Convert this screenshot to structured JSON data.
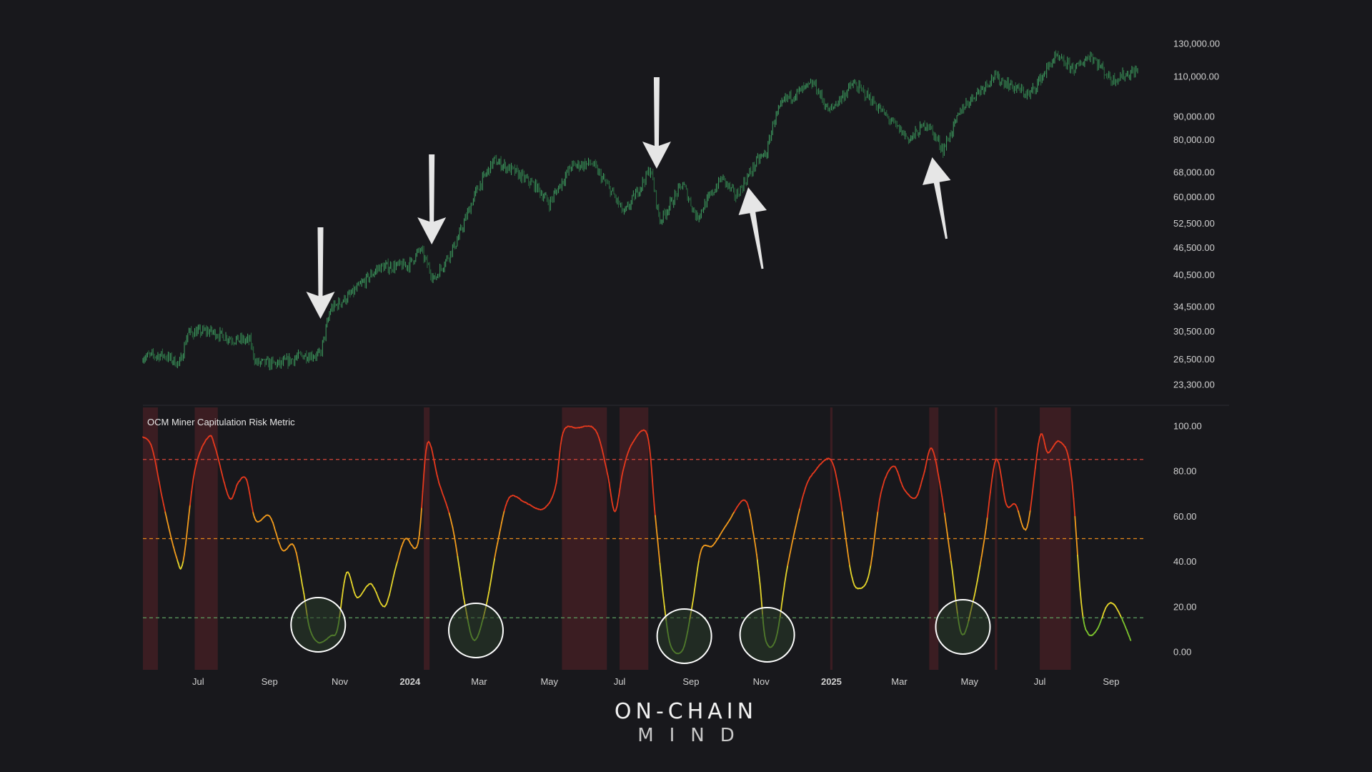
{
  "chart_data": [
    {
      "type": "candlestick",
      "title": "",
      "y_scale": "log",
      "y_ticks": [
        "130,000.00",
        "110,000.00",
        "90,000.00",
        "80,000.00",
        "68,000.00",
        "60,000.00",
        "52,500.00",
        "46,500.00",
        "40,500.00",
        "34,500.00",
        "30,500.00",
        "26,500.00",
        "23,300.00"
      ],
      "ylim": [
        21500,
        145000
      ],
      "x_range": [
        "2023-05-14",
        "2025-09-24"
      ],
      "series": [
        {
          "points": [
            [
              "2023-05-14",
              26800
            ],
            [
              "2023-06-01",
              27000
            ],
            [
              "2023-06-15",
              25800
            ],
            [
              "2023-06-22",
              30200
            ],
            [
              "2023-07-10",
              30500
            ],
            [
              "2023-08-01",
              29200
            ],
            [
              "2023-08-15",
              29000
            ],
            [
              "2023-08-20",
              26000
            ],
            [
              "2023-09-10",
              25800
            ],
            [
              "2023-09-30",
              27000
            ],
            [
              "2023-10-15",
              27000
            ],
            [
              "2023-10-24",
              34000
            ],
            [
              "2023-11-10",
              36500
            ],
            [
              "2023-12-05",
              42000
            ],
            [
              "2023-12-31",
              42500
            ],
            [
              "2024-01-10",
              46000
            ],
            [
              "2024-01-22",
              39500
            ],
            [
              "2024-02-10",
              47500
            ],
            [
              "2024-02-28",
              62000
            ],
            [
              "2024-03-14",
              72000
            ],
            [
              "2024-04-01",
              68000
            ],
            [
              "2024-04-20",
              63000
            ],
            [
              "2024-05-01",
              58000
            ],
            [
              "2024-05-20",
              70000
            ],
            [
              "2024-06-07",
              71000
            ],
            [
              "2024-06-25",
              61000
            ],
            [
              "2024-07-05",
              55000
            ],
            [
              "2024-07-28",
              69000
            ],
            [
              "2024-08-05",
              53000
            ],
            [
              "2024-08-25",
              64000
            ],
            [
              "2024-09-06",
              54000
            ],
            [
              "2024-09-28",
              66000
            ],
            [
              "2024-10-10",
              60000
            ],
            [
              "2024-10-29",
              72000
            ],
            [
              "2024-11-06",
              75000
            ],
            [
              "2024-11-12",
              88000
            ],
            [
              "2024-11-22",
              98000
            ],
            [
              "2024-12-17",
              106000
            ],
            [
              "2024-12-30",
              92000
            ],
            [
              "2025-01-20",
              106000
            ],
            [
              "2025-02-01",
              100000
            ],
            [
              "2025-02-25",
              86000
            ],
            [
              "2025-03-10",
              80000
            ],
            [
              "2025-03-25",
              87000
            ],
            [
              "2025-04-08",
              76000
            ],
            [
              "2025-04-25",
              94000
            ],
            [
              "2025-05-22",
              110000
            ],
            [
              "2025-06-22",
              100000
            ],
            [
              "2025-07-14",
              121000
            ],
            [
              "2025-08-01",
              114000
            ],
            [
              "2025-08-14",
              123000
            ],
            [
              "2025-09-01",
              108000
            ],
            [
              "2025-09-24",
              113500
            ]
          ]
        }
      ]
    },
    {
      "type": "line",
      "title": "OCM Miner Capitulation Risk Metric",
      "y_ticks": [
        "100.00",
        "80.00",
        "60.00",
        "40.00",
        "20.00",
        "0.00"
      ],
      "ylim": [
        -8,
        108
      ],
      "x_ticks": [
        "Jul",
        "Sep",
        "Nov",
        "2024",
        "Mar",
        "May",
        "Jul",
        "Sep",
        "Nov",
        "2025",
        "Mar",
        "May",
        "Jul",
        "Sep"
      ],
      "x_tick_dates": [
        "2023-07-01",
        "2023-09-01",
        "2023-11-01",
        "2024-01-01",
        "2024-03-01",
        "2024-05-01",
        "2024-07-01",
        "2024-09-01",
        "2024-11-01",
        "2025-01-01",
        "2025-03-01",
        "2025-05-01",
        "2025-07-01",
        "2025-09-01"
      ],
      "thresholds": [
        {
          "value": 85,
          "color": "#d8463a"
        },
        {
          "value": 50,
          "color": "#e88a1a"
        },
        {
          "value": 15,
          "color": "#5fa060"
        }
      ],
      "high_risk_bands": [
        [
          "2023-05-14",
          "2023-05-27"
        ],
        [
          "2023-06-28",
          "2023-07-18"
        ],
        [
          "2024-01-13",
          "2024-01-18"
        ],
        [
          "2024-05-12",
          "2024-06-20"
        ],
        [
          "2024-07-01",
          "2024-07-26"
        ],
        [
          "2024-12-31",
          "2025-01-02"
        ],
        [
          "2025-03-27",
          "2025-04-04"
        ],
        [
          "2025-05-23",
          "2025-05-25"
        ],
        [
          "2025-07-01",
          "2025-07-28"
        ]
      ],
      "capitulation_circles": [
        "2023-10-12",
        "2024-02-26",
        "2024-08-25",
        "2024-11-05",
        "2025-04-24"
      ],
      "series": [
        {
          "colorscale": [
            "#7cc42e",
            "#e4d42a",
            "#f19a1c",
            "#e6391d"
          ],
          "points": [
            [
              "2023-05-14",
              95
            ],
            [
              "2023-05-22",
              90
            ],
            [
              "2023-06-01",
              65
            ],
            [
              "2023-06-12",
              42
            ],
            [
              "2023-06-18",
              40
            ],
            [
              "2023-06-28",
              80
            ],
            [
              "2023-07-10",
              95
            ],
            [
              "2023-07-16",
              90
            ],
            [
              "2023-07-28",
              68
            ],
            [
              "2023-08-05",
              75
            ],
            [
              "2023-08-12",
              76
            ],
            [
              "2023-08-20",
              58
            ],
            [
              "2023-09-01",
              60
            ],
            [
              "2023-09-12",
              45
            ],
            [
              "2023-09-22",
              47
            ],
            [
              "2023-09-30",
              28
            ],
            [
              "2023-10-06",
              10
            ],
            [
              "2023-10-14",
              4
            ],
            [
              "2023-10-24",
              7
            ],
            [
              "2023-10-30",
              10
            ],
            [
              "2023-11-07",
              35
            ],
            [
              "2023-11-16",
              24
            ],
            [
              "2023-11-28",
              30
            ],
            [
              "2023-12-10",
              20
            ],
            [
              "2023-12-20",
              38
            ],
            [
              "2023-12-28",
              50
            ],
            [
              "2024-01-08",
              48
            ],
            [
              "2024-01-16",
              92
            ],
            [
              "2024-01-26",
              75
            ],
            [
              "2024-02-07",
              55
            ],
            [
              "2024-02-18",
              20
            ],
            [
              "2024-02-26",
              5
            ],
            [
              "2024-03-07",
              20
            ],
            [
              "2024-03-17",
              48
            ],
            [
              "2024-03-27",
              68
            ],
            [
              "2024-04-10",
              66
            ],
            [
              "2024-04-25",
              63
            ],
            [
              "2024-05-06",
              72
            ],
            [
              "2024-05-13",
              97
            ],
            [
              "2024-05-25",
              99
            ],
            [
              "2024-06-10",
              98
            ],
            [
              "2024-06-20",
              80
            ],
            [
              "2024-06-27",
              62
            ],
            [
              "2024-07-04",
              80
            ],
            [
              "2024-07-12",
              92
            ],
            [
              "2024-07-25",
              96
            ],
            [
              "2024-08-01",
              60
            ],
            [
              "2024-08-09",
              20
            ],
            [
              "2024-08-15",
              2
            ],
            [
              "2024-08-25",
              1
            ],
            [
              "2024-09-02",
              20
            ],
            [
              "2024-09-10",
              45
            ],
            [
              "2024-09-20",
              47
            ],
            [
              "2024-10-03",
              57
            ],
            [
              "2024-10-18",
              67
            ],
            [
              "2024-10-26",
              50
            ],
            [
              "2024-10-31",
              30
            ],
            [
              "2024-11-05",
              5
            ],
            [
              "2024-11-14",
              6
            ],
            [
              "2024-11-24",
              38
            ],
            [
              "2024-12-08",
              70
            ],
            [
              "2024-12-18",
              80
            ],
            [
              "2024-12-31",
              85
            ],
            [
              "2025-01-08",
              70
            ],
            [
              "2025-01-18",
              35
            ],
            [
              "2025-01-25",
              28
            ],
            [
              "2025-02-03",
              35
            ],
            [
              "2025-02-13",
              70
            ],
            [
              "2025-02-24",
              82
            ],
            [
              "2025-03-05",
              72
            ],
            [
              "2025-03-15",
              68
            ],
            [
              "2025-03-22",
              78
            ],
            [
              "2025-03-29",
              90
            ],
            [
              "2025-04-06",
              72
            ],
            [
              "2025-04-15",
              40
            ],
            [
              "2025-04-24",
              8
            ],
            [
              "2025-05-04",
              22
            ],
            [
              "2025-05-14",
              50
            ],
            [
              "2025-05-24",
              85
            ],
            [
              "2025-06-02",
              65
            ],
            [
              "2025-06-10",
              65
            ],
            [
              "2025-06-20",
              55
            ],
            [
              "2025-07-01",
              95
            ],
            [
              "2025-07-08",
              88
            ],
            [
              "2025-07-18",
              93
            ],
            [
              "2025-07-28",
              80
            ],
            [
              "2025-08-06",
              22
            ],
            [
              "2025-08-12",
              8
            ],
            [
              "2025-08-20",
              10
            ],
            [
              "2025-08-28",
              20
            ],
            [
              "2025-09-03",
              21
            ],
            [
              "2025-09-10",
              15
            ],
            [
              "2025-09-18",
              5
            ]
          ]
        }
      ]
    }
  ],
  "annotations": {
    "arrows": [
      {
        "type": "arrow",
        "direction": "down",
        "date": "2023-10-14"
      },
      {
        "type": "arrow",
        "direction": "down",
        "date": "2024-01-18"
      },
      {
        "type": "arrow",
        "direction": "down",
        "date": "2024-08-01"
      },
      {
        "type": "arrow",
        "direction": "up",
        "date": "2024-10-22"
      },
      {
        "type": "arrow",
        "direction": "up",
        "date": "2025-04-06"
      }
    ]
  },
  "colors": {
    "background": "#18181c",
    "candle": "#3a9a5c",
    "axis_text": "#d0d0d0",
    "band": "#5a2328",
    "circle_stroke": "#ffffff",
    "circle_fill": "#2a3d2a"
  },
  "brand": {
    "top": "ON-CHAIN",
    "bottom": "MIND"
  }
}
